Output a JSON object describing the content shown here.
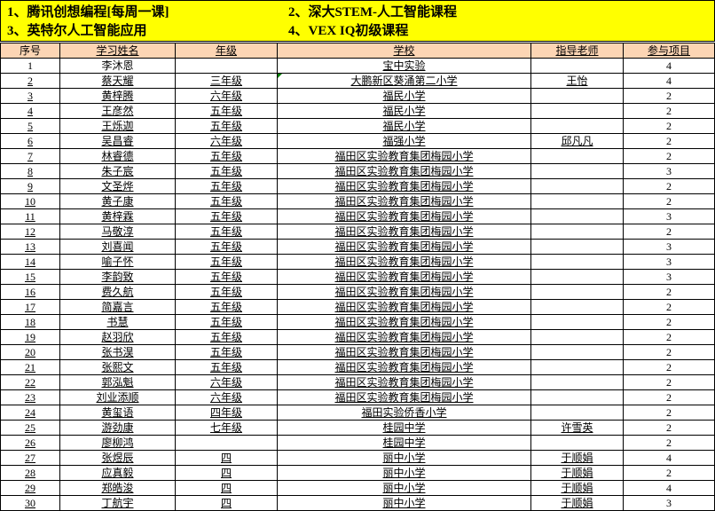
{
  "banner": {
    "items": [
      "1、腾讯创想编程[每周一课]",
      "2、深大STEM-人工智能课程",
      "3、英特尔人工智能应用",
      "4、VEX IQ初级课程"
    ]
  },
  "colors": {
    "banner_bg": "#FFFF00",
    "header_bg": "#FCD5B4",
    "error_indicator": "#008000",
    "grid_border": "#000000"
  },
  "table": {
    "headers": [
      "序号",
      "学习姓名",
      "年级",
      "学校",
      "指导老师",
      "参与项目"
    ],
    "error_marker": {
      "row_index": 1,
      "column_index": 3
    },
    "rows": [
      [
        "1",
        "李沐恩",
        "",
        "宝中实验",
        "",
        "4"
      ],
      [
        "2",
        "蔡天耀",
        "三年级",
        "大鹏新区葵涌第二小学",
        "王怡",
        "4"
      ],
      [
        "3",
        "黄梓腾",
        "六年级",
        "福民小学",
        "",
        "2"
      ],
      [
        "4",
        "王彦然",
        "五年级",
        "福民小学",
        "",
        "2"
      ],
      [
        "5",
        "王烁迦",
        "五年级",
        "福民小学",
        "",
        "2"
      ],
      [
        "6",
        "吴昌睿",
        "六年级",
        "福强小学",
        "邱凡凡",
        "2"
      ],
      [
        "7",
        "林睿德",
        "五年级",
        "福田区实验教育集团梅园小学",
        "",
        "2"
      ],
      [
        "8",
        "朱子宸",
        "五年级",
        "福田区实验教育集团梅园小学",
        "",
        "3"
      ],
      [
        "9",
        "文圣烨",
        "五年级",
        "福田区实验教育集团梅园小学",
        "",
        "2"
      ],
      [
        "10",
        "黄子康",
        "五年级",
        "福田区实验教育集团梅园小学",
        "",
        "2"
      ],
      [
        "11",
        "黄梓霖",
        "五年级",
        "福田区实验教育集团梅园小学",
        "",
        "3"
      ],
      [
        "12",
        "马敬淳",
        "五年级",
        "福田区实验教育集团梅园小学",
        "",
        "2"
      ],
      [
        "13",
        "刘喜闻",
        "五年级",
        "福田区实验教育集团梅园小学",
        "",
        "3"
      ],
      [
        "14",
        "喻子怀",
        "五年级",
        "福田区实验教育集团梅园小学",
        "",
        "3"
      ],
      [
        "15",
        "李韵致",
        "五年级",
        "福田区实验教育集团梅园小学",
        "",
        "3"
      ],
      [
        "16",
        "费久航",
        "五年级",
        "福田区实验教育集团梅园小学",
        "",
        "2"
      ],
      [
        "17",
        "简嘉言",
        "五年级",
        "福田区实验教育集团梅园小学",
        "",
        "2"
      ],
      [
        "18",
        "书慧",
        "五年级",
        "福田区实验教育集团梅园小学",
        "",
        "2"
      ],
      [
        "19",
        "赵羽欣",
        "五年级",
        "福田区实验教育集团梅园小学",
        "",
        "2"
      ],
      [
        "20",
        "张书淏",
        "五年级",
        "福田区实验教育集团梅园小学",
        "",
        "2"
      ],
      [
        "21",
        "张熙文",
        "五年级",
        "福田区实验教育集团梅园小学",
        "",
        "2"
      ],
      [
        "22",
        "郭泓魁",
        "六年级",
        "福田区实验教育集团梅园小学",
        "",
        "2"
      ],
      [
        "23",
        "刘业添顺",
        "六年级",
        "福田区实验教育集团梅园小学",
        "",
        "2"
      ],
      [
        "24",
        "黄玺语",
        "四年级",
        "福田实验侨香小学",
        "",
        "2"
      ],
      [
        "25",
        "游劲康",
        "七年级",
        "桂园中学",
        "许雪英",
        "2"
      ],
      [
        "26",
        "廖柳鸿",
        "",
        "桂园中学",
        "",
        "2"
      ],
      [
        "27",
        "张煜辰",
        "四",
        "丽中小学",
        "于顺娟",
        "4"
      ],
      [
        "28",
        "应真毅",
        "四",
        "丽中小学",
        "于顺娟",
        "2"
      ],
      [
        "29",
        "郑皓浚",
        "四",
        "丽中小学",
        "于顺娟",
        "4"
      ],
      [
        "30",
        "丁航宇",
        "四",
        "丽中小学",
        "于顺娟",
        "3"
      ]
    ]
  }
}
